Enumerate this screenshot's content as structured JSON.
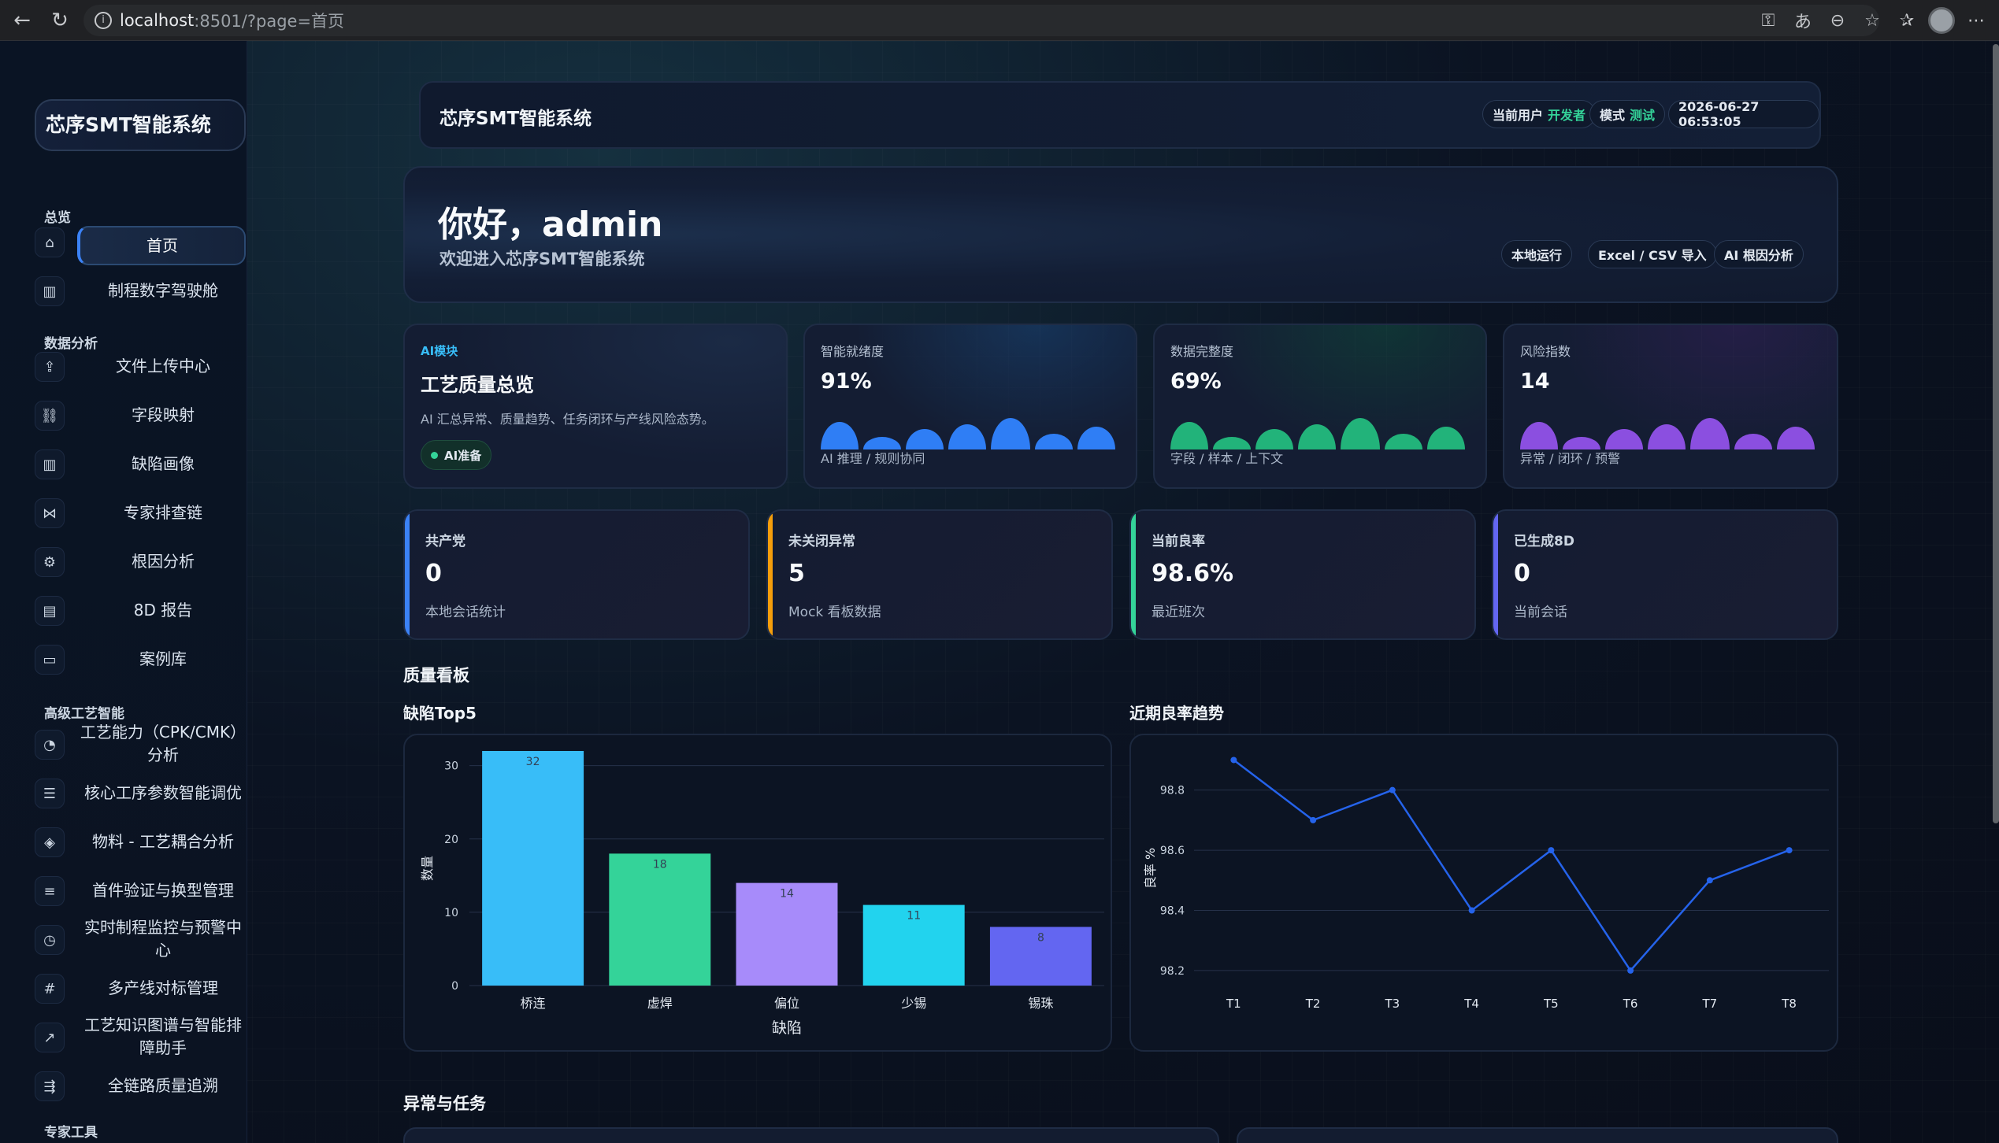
{
  "browser": {
    "url_host": "localhost",
    "url_rest": ":8501/?page=首页"
  },
  "sidebar": {
    "brand": "芯序SMT智能系统",
    "groups": {
      "overview": "总览",
      "analysis": "数据分析",
      "advanced": "高级工艺智能",
      "tools": "专家工具"
    },
    "items": [
      {
        "label": "首页",
        "icon": "home-icon",
        "glyph": "⌂"
      },
      {
        "label": "制程数字驾驶舱",
        "icon": "bar-chart-icon",
        "glyph": "▥"
      },
      {
        "label": "文件上传中心",
        "icon": "upload-icon",
        "glyph": "⇪"
      },
      {
        "label": "字段映射",
        "icon": "link-icon",
        "glyph": "⛓"
      },
      {
        "label": "缺陷画像",
        "icon": "bar-chart-icon",
        "glyph": "▥"
      },
      {
        "label": "专家排查链",
        "icon": "trend-icon",
        "glyph": "⋈"
      },
      {
        "label": "根因分析",
        "icon": "gear-icon",
        "glyph": "⚙"
      },
      {
        "label": "8D 报告",
        "icon": "document-icon",
        "glyph": "▤"
      },
      {
        "label": "案例库",
        "icon": "folder-icon",
        "glyph": "▭"
      },
      {
        "label": "工艺能力（CPK/CMK）分析",
        "icon": "gauge-icon",
        "glyph": "◔"
      },
      {
        "label": "核心工序参数智能调优",
        "icon": "sliders-icon",
        "glyph": "☰"
      },
      {
        "label": "物料 - 工艺耦合分析",
        "icon": "layers-icon",
        "glyph": "◈"
      },
      {
        "label": "首件验证与换型管理",
        "icon": "list-icon",
        "glyph": "≡"
      },
      {
        "label": "实时制程监控与预警中心",
        "icon": "clock-icon",
        "glyph": "◷"
      },
      {
        "label": "多产线对标管理",
        "icon": "hash-icon",
        "glyph": "#"
      },
      {
        "label": "工艺知识图谱与智能排障助手",
        "icon": "line-chart-icon",
        "glyph": "↗"
      },
      {
        "label": "全链路质量追溯",
        "icon": "route-icon",
        "glyph": "⇶"
      }
    ]
  },
  "header": {
    "title": "芯序SMT智能系统",
    "user_label": "当前用户",
    "user_value": "开发者",
    "mode_label": "模式",
    "mode_value": "测试",
    "datetime": "2026-06-27 06:53:05"
  },
  "hero": {
    "greeting": "你好，admin",
    "subtitle": "欢迎进入芯序SMT智能系统",
    "tags": [
      "本地运行",
      "Excel / CSV 导入",
      "AI 根因分析"
    ]
  },
  "ai_card": {
    "tag": "AI模块",
    "title": "工艺质量总览",
    "desc": "AI 汇总异常、质量趋势、任务闭环与产线风险态势。",
    "status": "AI准备"
  },
  "metric_cards": [
    {
      "label": "智能就绪度",
      "value": "91%",
      "note": "AI 推理 / 规则协同",
      "color": "#2f7ef5",
      "levels": [
        0.55,
        0.25,
        0.4,
        0.5,
        0.62,
        0.32,
        0.46
      ]
    },
    {
      "label": "数据完整度",
      "value": "69%",
      "note": "字段 / 样本 / 上下文",
      "color": "#22b37a",
      "levels": [
        0.55,
        0.25,
        0.4,
        0.5,
        0.62,
        0.32,
        0.46
      ]
    },
    {
      "label": "风险指数",
      "value": "14",
      "note": "异常 / 闭环 / 预警",
      "color": "#8b4fe0",
      "levels": [
        0.55,
        0.25,
        0.4,
        0.5,
        0.62,
        0.32,
        0.46
      ]
    }
  ],
  "kpis": [
    {
      "label": "共产党",
      "value": "0",
      "note": "本地会话统计",
      "color": "#3b82f6"
    },
    {
      "label": "未关闭异常",
      "value": "5",
      "note": "Mock 看板数据",
      "color": "#f59e0b"
    },
    {
      "label": "当前良率",
      "value": "98.6%",
      "note": "最近班次",
      "color": "#34d399"
    },
    {
      "label": "已生成8D",
      "value": "0",
      "note": "当前会话",
      "color": "#6366f1"
    }
  ],
  "sections": {
    "quality_board": "质量看板",
    "defect_title": "缺陷Top5",
    "yield_title": "近期良率趋势",
    "tasks": "异常与任务"
  },
  "chart_data": [
    {
      "type": "bar",
      "title": "缺陷Top5",
      "xlabel": "缺陷",
      "ylabel": "数量",
      "categories": [
        "桥连",
        "虚焊",
        "偏位",
        "少锡",
        "锡珠"
      ],
      "values": [
        32,
        18,
        14,
        11,
        8
      ],
      "colors": [
        "#38bdf8",
        "#34d399",
        "#a78bfa",
        "#22d3ee",
        "#6366f1"
      ],
      "yticks": [
        "0",
        "10",
        "20",
        "30"
      ],
      "ylim": [
        0,
        32
      ],
      "grid": true
    },
    {
      "type": "line",
      "title": "近期良率趋势",
      "xlabel": "",
      "ylabel": "良率 %",
      "categories": [
        "T1",
        "T2",
        "T3",
        "T4",
        "T5",
        "T6",
        "T7",
        "T8"
      ],
      "values": [
        98.9,
        98.7,
        98.8,
        98.4,
        98.6,
        98.2,
        98.5,
        98.6
      ],
      "yticks": [
        "98.2",
        "98.4",
        "98.6",
        "98.8"
      ],
      "ylim": [
        98.15,
        98.93
      ],
      "color": "#2563eb",
      "grid": true
    }
  ]
}
